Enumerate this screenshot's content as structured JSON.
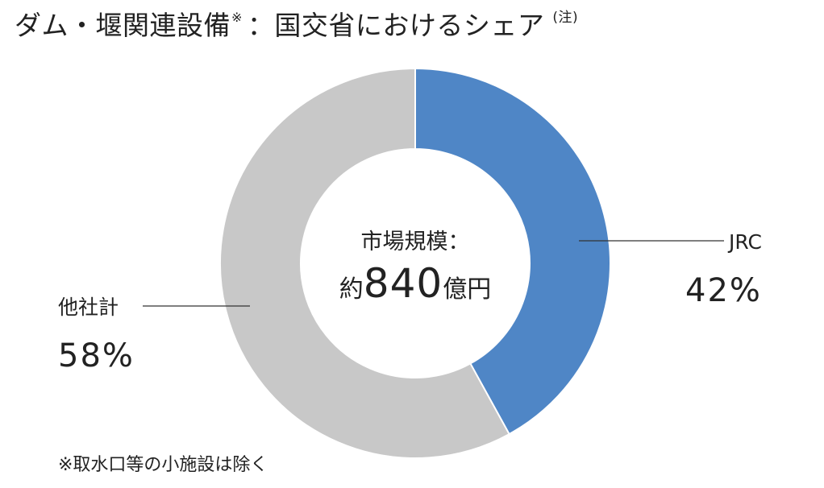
{
  "title": {
    "text": "ダム・堰関連設備",
    "mark": "※",
    "suffix": "：国交省におけるシェア",
    "note": "(注)"
  },
  "center": {
    "line1": "市場規模：",
    "prefix": "約",
    "amount": "840",
    "suffix": "億円"
  },
  "footnote": "※取水口等の小施設は除く",
  "chart_data": {
    "type": "pie",
    "donut": true,
    "start_angle_deg": 0,
    "direction": "clockwise",
    "slices": [
      {
        "name": "JRC",
        "value": 42,
        "value_label": "42%",
        "color": "#4f86c6"
      },
      {
        "name": "他社計",
        "value": 58,
        "value_label": "58%",
        "color": "#c8c8c8"
      }
    ],
    "legend": "none"
  }
}
